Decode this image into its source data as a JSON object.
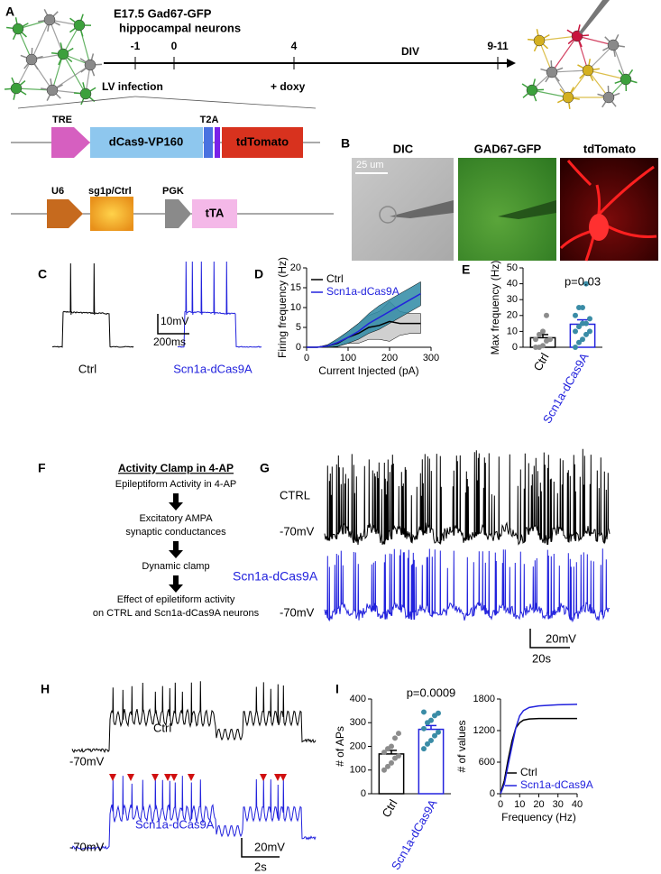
{
  "panels": {
    "A": {
      "label": "A",
      "title": "E17.5 Gad67-GFP",
      "subtitle": "hippocampal neurons",
      "timeline_ticks": [
        "-1",
        "0",
        "4",
        "9-11"
      ],
      "timeline_label": "DIV",
      "events": [
        "LV infection",
        "+ doxy"
      ],
      "construct_1": [
        "TRE",
        "dCas9-VP160",
        "T2A",
        "tdTomato"
      ],
      "construct_2": [
        "U6",
        "sg1p/Ctrl",
        "PGK",
        "tTA"
      ]
    },
    "B": {
      "label": "B",
      "images": [
        "DIC",
        "GAD67-GFP",
        "tdTomato"
      ],
      "scale_bar": "25 um"
    },
    "C": {
      "label": "C",
      "traces": [
        "Ctrl",
        "Scn1a-dCas9A"
      ],
      "scale_bar_v": "10mV",
      "scale_bar_h": "200ms"
    },
    "D": {
      "label": "D"
    },
    "E": {
      "label": "E"
    },
    "F": {
      "label": "F",
      "title": "Activity Clamp in 4-AP",
      "steps": [
        [
          "Epileptiform Activity in 4-AP"
        ],
        [
          "Excitatory AMPA",
          "synaptic conductances"
        ],
        [
          "Dynamic clamp"
        ],
        [
          "Effect of epiletiform activity",
          "on CTRL and Scn1a-dCas9A neurons"
        ]
      ]
    },
    "G": {
      "label": "G",
      "traces": [
        "CTRL",
        "Scn1a-dCas9A"
      ],
      "baselines": [
        "-70mV",
        "-70mV"
      ],
      "scale_bar_v": "20mV",
      "scale_bar_h": "20s"
    },
    "H": {
      "label": "H",
      "traces": [
        "Ctrl",
        "Scn1a-dCas9A"
      ],
      "baselines": [
        "-70mV",
        "-70mV"
      ],
      "scale_bar_v": "20mV",
      "scale_bar_h": "2s"
    },
    "I": {
      "label": "I"
    }
  },
  "chart_data": [
    {
      "type": "line",
      "xlabel": "Current Injected (pA)",
      "ylabel": "Firing frequency (Hz)",
      "x": [
        0,
        25,
        50,
        75,
        100,
        125,
        150,
        175,
        200,
        225,
        250,
        275
      ],
      "series": [
        {
          "name": "Ctrl",
          "color": "#000000",
          "band_color": "#c8c8c8",
          "values": [
            0,
            0,
            0.3,
            1,
            2.5,
            3.5,
            5,
            5.5,
            6.5,
            6,
            6,
            6
          ],
          "error": [
            0,
            0,
            0.3,
            0.8,
            1.5,
            2.5,
            3,
            3.5,
            5,
            3,
            2.5,
            2.5
          ]
        },
        {
          "name": "Scn1a-dCas9A",
          "color": "#2222dd",
          "band_color": "#2e89a4",
          "values": [
            0,
            0,
            0.3,
            1.2,
            2.5,
            4,
            6,
            7.5,
            9,
            10.5,
            12,
            13.5
          ],
          "error": [
            0,
            0,
            0.3,
            1,
            1.5,
            2,
            2.5,
            3,
            3,
            3,
            3,
            3
          ]
        }
      ],
      "xlim": [
        0,
        300
      ],
      "xticks": [
        0,
        100,
        200,
        300
      ],
      "ylim": [
        0,
        20
      ],
      "yticks": [
        0,
        5,
        10,
        15,
        20
      ],
      "legend": "upper left"
    },
    {
      "type": "bar",
      "ylabel": "Max frequency (Hz)",
      "categories": [
        "Ctrl",
        "Scn1a-dCas9A"
      ],
      "category_colors": [
        "#000000",
        "#2222dd"
      ],
      "bar_colors": [
        "#000000",
        "#2222dd"
      ],
      "point_colors": [
        "#8c8c8c",
        "#3a8ca6"
      ],
      "values": [
        6,
        14.5
      ],
      "error": [
        2,
        2.8
      ],
      "points": [
        [
          0,
          0,
          1,
          4,
          5,
          5,
          8,
          10,
          20
        ],
        [
          0,
          3,
          5,
          8,
          10,
          10,
          13,
          15,
          15,
          18,
          20,
          25,
          25,
          40
        ]
      ],
      "annotation": "p=0.03",
      "ylim": [
        0,
        50
      ],
      "yticks": [
        0,
        10,
        20,
        30,
        40,
        50
      ]
    },
    {
      "type": "bar",
      "ylabel": "# of APs",
      "categories": [
        "Ctrl",
        "Scn1a-dCas9A"
      ],
      "category_colors": [
        "#000000",
        "#2222dd"
      ],
      "bar_colors": [
        "#000000",
        "#2222dd"
      ],
      "point_colors": [
        "#8c8c8c",
        "#3a8ca6"
      ],
      "values": [
        168,
        272
      ],
      "error": [
        15,
        16
      ],
      "points": [
        [
          100,
          115,
          130,
          150,
          160,
          175,
          190,
          200,
          235,
          255
        ],
        [
          190,
          210,
          225,
          245,
          260,
          275,
          300,
          310,
          330,
          340,
          345
        ]
      ],
      "annotation": "p=0.0009",
      "ylim": [
        0,
        400
      ],
      "yticks": [
        0,
        100,
        200,
        300,
        400
      ]
    },
    {
      "type": "line",
      "xlabel": "Frequency (Hz)",
      "ylabel": "# of values",
      "x": [
        0,
        2,
        4,
        6,
        8,
        10,
        12,
        15,
        20,
        30,
        40
      ],
      "series": [
        {
          "name": "Ctrl",
          "color": "#000000",
          "values": [
            0,
            250,
            650,
            1000,
            1250,
            1350,
            1400,
            1420,
            1430,
            1430,
            1430
          ]
        },
        {
          "name": "Scn1a-dCas9A",
          "color": "#2222dd",
          "values": [
            0,
            180,
            550,
            900,
            1250,
            1480,
            1580,
            1640,
            1670,
            1690,
            1700
          ]
        }
      ],
      "xlim": [
        0,
        40
      ],
      "xticks": [
        0,
        10,
        20,
        30,
        40
      ],
      "ylim": [
        0,
        1800
      ],
      "yticks": [
        0,
        600,
        1200,
        1800
      ],
      "legend": "lower right"
    }
  ]
}
